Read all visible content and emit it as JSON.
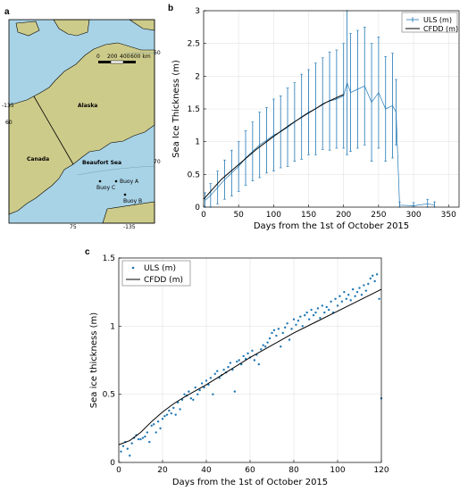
{
  "panels": {
    "a": "a",
    "b": "b",
    "c": "c"
  },
  "map": {
    "region_labels": [
      "Alaska",
      "Canada",
      "Beaufort Sea"
    ],
    "buoys": [
      "Buoy A",
      "Buoy B",
      "Buoy C"
    ],
    "coord_labels": [
      "60",
      "-135",
      "60",
      "70",
      "-135",
      "75"
    ],
    "scale_ticks": [
      "0",
      "200",
      "400",
      "600 km"
    ],
    "colors": {
      "ocean": "#a8d3e6",
      "land": "#cdcb8a",
      "coast": "#000000"
    }
  },
  "chart_data": [
    {
      "type": "line",
      "panel": "b",
      "xlabel": "Days from the 1st of October 2015",
      "ylabel": "Sea Ice Thickness (m)",
      "xlim": [
        0,
        365
      ],
      "ylim": [
        0,
        3
      ],
      "xticks": [
        "0",
        "50",
        "100",
        "150",
        "200",
        "250",
        "300",
        "350"
      ],
      "yticks": [
        "0",
        "0.5",
        "1",
        "1.5",
        "2",
        "2.5",
        "3"
      ],
      "grid": true,
      "legend_position": "top-right",
      "series": [
        {
          "name": "ULS (m)",
          "kind": "errorbar",
          "color": "#1f77b4",
          "x": [
            2,
            10,
            20,
            30,
            40,
            50,
            60,
            70,
            80,
            90,
            100,
            110,
            120,
            130,
            140,
            150,
            160,
            170,
            180,
            190,
            200,
            205,
            210,
            220,
            230,
            240,
            250,
            260,
            270,
            275,
            280,
            300,
            320,
            330
          ],
          "y": [
            0.1,
            0.18,
            0.3,
            0.42,
            0.52,
            0.62,
            0.75,
            0.85,
            0.95,
            1.02,
            1.1,
            1.15,
            1.22,
            1.3,
            1.38,
            1.45,
            1.5,
            1.58,
            1.62,
            1.65,
            1.7,
            1.9,
            1.75,
            1.8,
            1.85,
            1.6,
            1.75,
            1.5,
            1.55,
            1.45,
            0.03,
            0.02,
            0.05,
            0.03
          ],
          "err": [
            0.12,
            0.18,
            0.25,
            0.3,
            0.35,
            0.38,
            0.42,
            0.45,
            0.5,
            0.5,
            0.55,
            0.55,
            0.6,
            0.6,
            0.65,
            0.65,
            0.7,
            0.7,
            0.75,
            0.75,
            0.8,
            1.1,
            0.9,
            0.9,
            0.9,
            0.9,
            0.85,
            0.8,
            0.8,
            0.5,
            0.05,
            0.05,
            0.07,
            0.05
          ]
        },
        {
          "name": "CFDD (m)",
          "kind": "line",
          "color": "#000000",
          "x": [
            0,
            25,
            50,
            75,
            100,
            125,
            150,
            175,
            200
          ],
          "y": [
            0.12,
            0.42,
            0.65,
            0.88,
            1.08,
            1.27,
            1.44,
            1.6,
            1.72
          ]
        }
      ]
    },
    {
      "type": "scatter",
      "panel": "c",
      "xlabel": "Days from the 1st of October 2015",
      "ylabel": "Sea ice thickness (m)",
      "xlim": [
        0,
        120
      ],
      "ylim": [
        0,
        1.5
      ],
      "xticks": [
        "0",
        "20",
        "40",
        "60",
        "80",
        "100",
        "120"
      ],
      "yticks": [
        "0",
        "0.5",
        "1",
        "1.5"
      ],
      "grid": true,
      "legend_position": "top-left",
      "series": [
        {
          "name": "ULS (m)",
          "kind": "points",
          "color": "#1f77b4",
          "x": [
            1,
            2,
            3,
            4,
            5,
            6,
            7,
            8,
            9,
            10,
            11,
            12,
            13,
            14,
            15,
            16,
            17,
            18,
            19,
            20,
            21,
            22,
            23,
            24,
            25,
            26,
            27,
            28,
            29,
            30,
            31,
            32,
            33,
            34,
            35,
            36,
            37,
            38,
            39,
            40,
            41,
            42,
            43,
            44,
            45,
            46,
            47,
            48,
            49,
            50,
            51,
            52,
            53,
            54,
            55,
            56,
            57,
            58,
            59,
            60,
            61,
            62,
            63,
            64,
            65,
            66,
            67,
            68,
            69,
            70,
            71,
            72,
            73,
            74,
            75,
            76,
            77,
            78,
            79,
            80,
            81,
            82,
            83,
            84,
            85,
            86,
            87,
            88,
            89,
            90,
            91,
            92,
            93,
            94,
            95,
            96,
            97,
            98,
            99,
            100,
            101,
            102,
            103,
            104,
            105,
            106,
            107,
            108,
            109,
            110,
            111,
            112,
            113,
            114,
            115,
            116,
            117,
            118,
            119,
            120
          ],
          "y": [
            0.08,
            0.12,
            0.15,
            0.1,
            0.05,
            0.14,
            0.18,
            0.2,
            0.17,
            0.17,
            0.18,
            0.19,
            0.22,
            0.15,
            0.27,
            0.28,
            0.22,
            0.3,
            0.25,
            0.32,
            0.34,
            0.35,
            0.38,
            0.36,
            0.4,
            0.35,
            0.44,
            0.39,
            0.46,
            0.5,
            0.49,
            0.52,
            0.47,
            0.46,
            0.55,
            0.5,
            0.53,
            0.58,
            0.55,
            0.6,
            0.57,
            0.62,
            0.5,
            0.65,
            0.67,
            0.62,
            0.64,
            0.68,
            0.66,
            0.7,
            0.73,
            0.68,
            0.52,
            0.74,
            0.75,
            0.72,
            0.78,
            0.76,
            0.8,
            0.77,
            0.82,
            0.75,
            0.79,
            0.72,
            0.83,
            0.86,
            0.85,
            0.88,
            0.91,
            0.95,
            0.97,
            0.93,
            0.98,
            0.85,
            0.95,
            0.99,
            1.02,
            0.9,
            0.98,
            1.05,
            1.01,
            1.04,
            1.07,
            1.0,
            1.08,
            1.1,
            1.05,
            1.12,
            1.08,
            1.1,
            1.13,
            1.06,
            1.15,
            1.1,
            1.14,
            1.12,
            1.18,
            1.1,
            1.2,
            1.15,
            1.22,
            1.18,
            1.25,
            1.2,
            1.23,
            1.19,
            1.27,
            1.22,
            1.25,
            1.28,
            1.23,
            1.3,
            1.26,
            1.31,
            1.35,
            1.37,
            1.33,
            1.38,
            1.2,
            0.47
          ]
        },
        {
          "name": "CFDD (m)",
          "kind": "line",
          "color": "#000000",
          "x": [
            0,
            5,
            10,
            15,
            20,
            25,
            30,
            40,
            50,
            60,
            70,
            80,
            90,
            100,
            110,
            120
          ],
          "y": [
            0.13,
            0.16,
            0.22,
            0.3,
            0.37,
            0.43,
            0.48,
            0.57,
            0.67,
            0.77,
            0.86,
            0.95,
            1.03,
            1.11,
            1.19,
            1.27
          ]
        }
      ]
    }
  ]
}
